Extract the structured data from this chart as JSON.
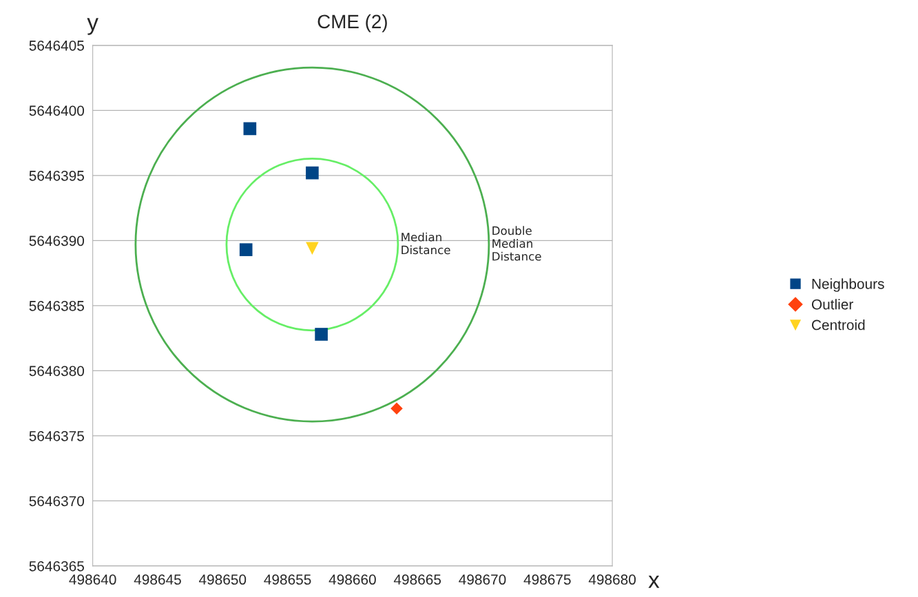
{
  "chart_data": {
    "type": "scatter",
    "title": "CME (2)",
    "xlabel": "x",
    "ylabel": "y",
    "xlim": [
      498640,
      498680
    ],
    "xticks": [
      498640,
      498645,
      498650,
      498655,
      498660,
      498665,
      498670,
      498675,
      498680
    ],
    "ylim": [
      5646365,
      5646405
    ],
    "yticks": [
      5646365,
      5646370,
      5646375,
      5646380,
      5646385,
      5646390,
      5646395,
      5646400,
      5646405
    ],
    "grid": "y",
    "legend": "right",
    "series": [
      {
        "name": "Neighbours",
        "color": "#004586",
        "marker": "square",
        "x": [
          498652.1,
          498656.9,
          498651.8,
          498657.6
        ],
        "values": [
          5646398.6,
          5646395.2,
          5646389.3,
          5646382.8
        ]
      },
      {
        "name": "Outlier",
        "color": "#ff420e",
        "marker": "diamond",
        "x": [
          498663.4
        ],
        "values": [
          5646377.1
        ]
      },
      {
        "name": "Centroid",
        "color": "#ffd320",
        "marker": "triangle",
        "x": [
          498656.9
        ],
        "values": [
          5646389.4
        ]
      }
    ],
    "annotations": [
      "Median\nDistance",
      "Double\nMedian\nDistance"
    ]
  }
}
